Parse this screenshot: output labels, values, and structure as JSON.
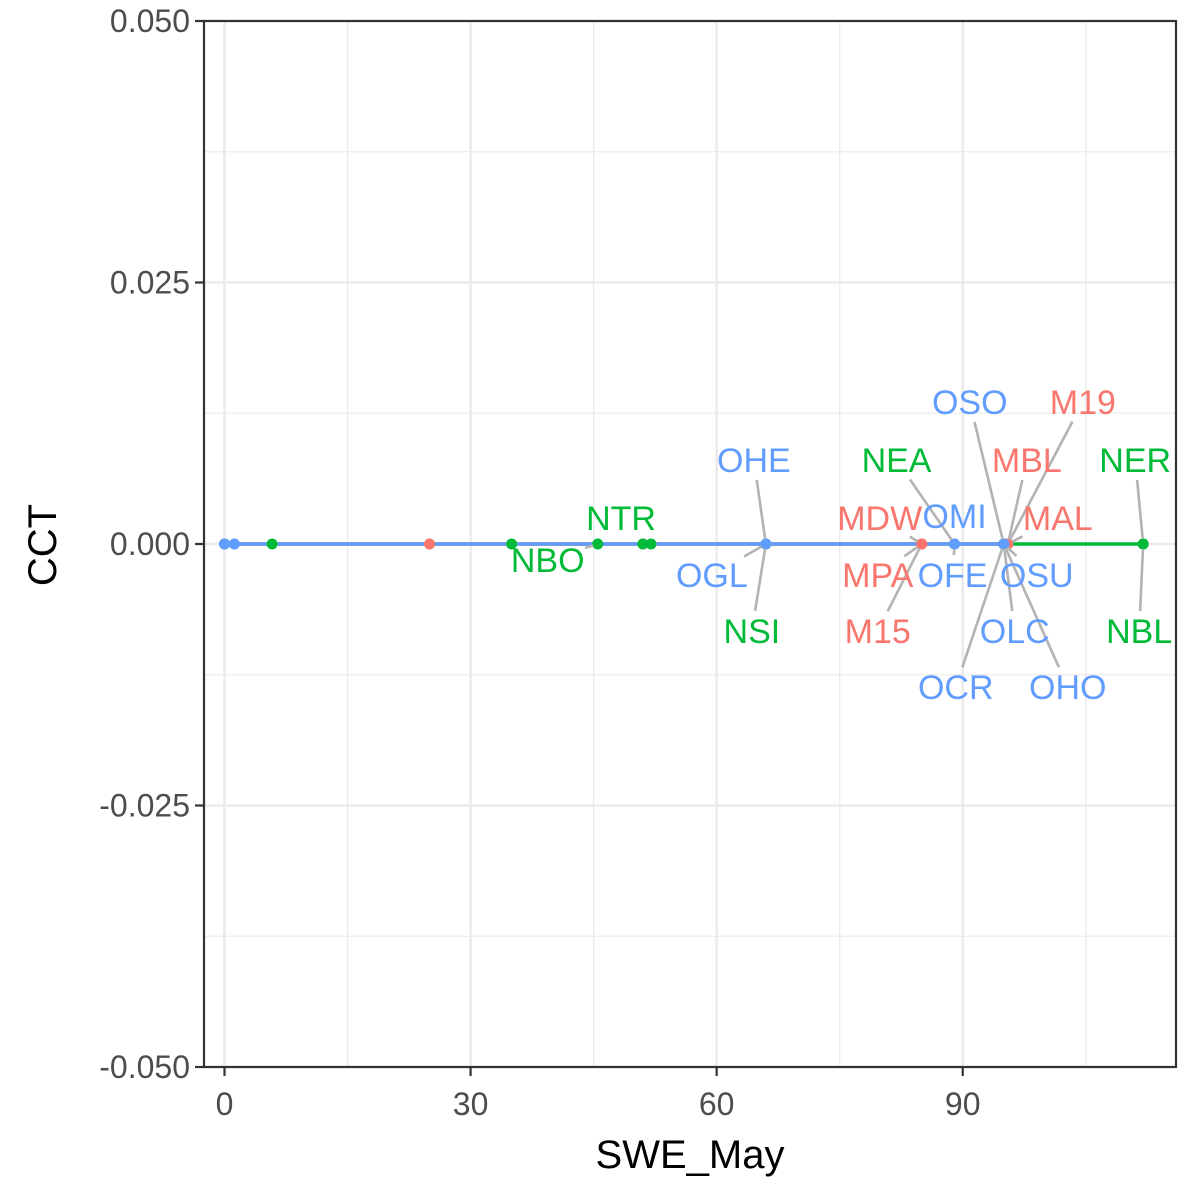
{
  "chart_data": {
    "type": "scatter",
    "xlabel": "SWE_May",
    "ylabel": "CCT",
    "xlim": [
      -2.5,
      116
    ],
    "ylim": [
      -0.05,
      0.05
    ],
    "x_ticks": [
      0,
      30,
      60,
      90
    ],
    "x_tick_labels": [
      "0",
      "30",
      "60",
      "90"
    ],
    "y_ticks": [
      -0.05,
      -0.025,
      0,
      0.025,
      0.05
    ],
    "y_tick_labels": [
      "-0.050",
      "-0.025",
      "0.000",
      "0.025",
      "0.050"
    ],
    "grid": true,
    "legend": "none",
    "colors": {
      "red": "#F8766D",
      "green": "#00BA38",
      "blue": "#619CFF",
      "segment": "#B3B3B3"
    },
    "series": [
      {
        "color_key": "red",
        "points": [
          {
            "x": 0,
            "y": 0
          },
          {
            "x": 25,
            "y": 0
          },
          {
            "x": 85,
            "y": 0,
            "label": "MDW"
          },
          {
            "x": 85,
            "y": 0,
            "label": "MPA"
          },
          {
            "x": 85,
            "y": 0,
            "label": "M15"
          },
          {
            "x": 95.5,
            "y": 0,
            "label": "M19"
          },
          {
            "x": 95.5,
            "y": 0,
            "label": "MBL"
          },
          {
            "x": 95.5,
            "y": 0,
            "label": "MAL"
          }
        ]
      },
      {
        "color_key": "green",
        "points": [
          {
            "x": 0,
            "y": 0
          },
          {
            "x": 5.8,
            "y": 0
          },
          {
            "x": 35,
            "y": 0
          },
          {
            "x": 45.5,
            "y": 0,
            "label": "NBO"
          },
          {
            "x": 51,
            "y": 0
          },
          {
            "x": 52,
            "y": 0,
            "label": "NTR"
          },
          {
            "x": 66,
            "y": 0,
            "label": "NSI"
          },
          {
            "x": 89,
            "y": 0,
            "label": "NEA"
          },
          {
            "x": 112,
            "y": 0,
            "label": "NER"
          },
          {
            "x": 112,
            "y": 0,
            "label": "NBL"
          }
        ]
      },
      {
        "color_key": "blue",
        "points": [
          {
            "x": 0,
            "y": 0
          },
          {
            "x": 1.2,
            "y": 0
          },
          {
            "x": 66,
            "y": 0,
            "label": "OHE"
          },
          {
            "x": 66,
            "y": 0,
            "label": "OGL"
          },
          {
            "x": 89,
            "y": 0,
            "label": "OMI"
          },
          {
            "x": 89,
            "y": 0,
            "label": "OFE"
          },
          {
            "x": 95,
            "y": 0,
            "label": "OSO"
          },
          {
            "x": 95,
            "y": 0,
            "label": "OSU"
          },
          {
            "x": 95,
            "y": 0,
            "label": "OLC"
          },
          {
            "x": 95,
            "y": 0,
            "label": "OCR"
          },
          {
            "x": 95,
            "y": 0,
            "label": "OHO"
          }
        ]
      }
    ],
    "trend_lines": [
      {
        "color_key": "green",
        "x": [
          0,
          112
        ],
        "y": [
          0,
          0
        ]
      },
      {
        "color_key": "red",
        "x": [
          0,
          95.5
        ],
        "y": [
          0,
          0
        ]
      },
      {
        "color_key": "blue",
        "x": [
          0,
          95
        ],
        "y": [
          0,
          0
        ]
      }
    ]
  }
}
